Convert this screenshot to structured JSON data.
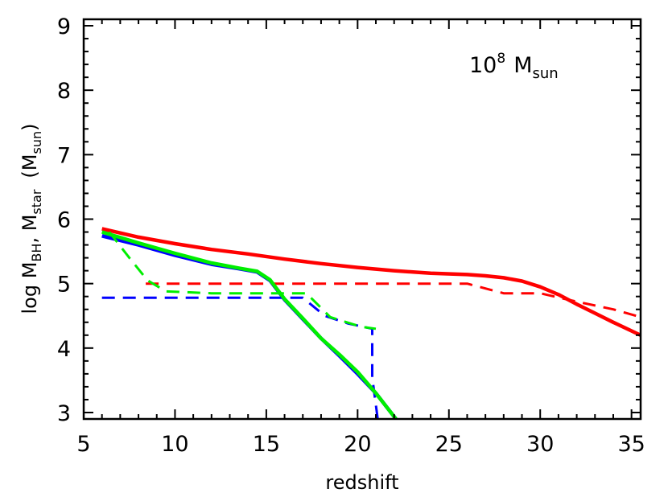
{
  "chart_data": {
    "type": "line",
    "title": "",
    "annotation": {
      "base": "10",
      "exp": "8",
      "label": "M",
      "label_sub": "sun"
    },
    "xlabel": "redshift",
    "ylabel": {
      "a": "log M",
      "a_sub": "BH",
      "b": ", M",
      "b_sub": "star",
      "c": "(M",
      "c_sub": "sun",
      "d": ")"
    },
    "xlim": [
      5,
      35.5
    ],
    "ylim": [
      2.9,
      9.1
    ],
    "xticks": [
      5,
      10,
      15,
      20,
      25,
      30,
      35
    ],
    "yticks": [
      3,
      4,
      5,
      6,
      7,
      8,
      9
    ],
    "grid": false,
    "legend": "none",
    "series": [
      {
        "color": "#ff0000",
        "dash": false,
        "x": [
          6,
          8,
          10,
          12,
          14,
          16,
          18,
          20,
          22,
          24,
          26,
          27,
          28,
          29,
          30,
          31,
          32,
          33,
          34,
          35.5
        ],
        "y": [
          5.85,
          5.72,
          5.62,
          5.53,
          5.46,
          5.38,
          5.31,
          5.25,
          5.2,
          5.16,
          5.14,
          5.12,
          5.09,
          5.04,
          4.95,
          4.83,
          4.68,
          4.54,
          4.4,
          4.2
        ]
      },
      {
        "color": "#ff0000",
        "dash": true,
        "x": [
          8.4,
          26,
          28,
          30,
          32,
          34,
          35.5
        ],
        "y": [
          5.0,
          5.0,
          4.85,
          4.85,
          4.72,
          4.6,
          4.48
        ]
      },
      {
        "color": "#0000ff",
        "dash": false,
        "x": [
          6,
          8,
          10,
          12,
          13.5,
          14.5,
          15.2,
          16,
          17,
          18,
          19,
          20,
          21,
          22.1
        ],
        "y": [
          5.74,
          5.6,
          5.44,
          5.3,
          5.23,
          5.18,
          5.05,
          4.75,
          4.45,
          4.15,
          3.88,
          3.6,
          3.3,
          2.9
        ]
      },
      {
        "color": "#0000ff",
        "dash": true,
        "x": [
          6,
          17,
          18.2,
          19.5,
          20.8,
          20.8,
          21.1
        ],
        "y": [
          4.78,
          4.78,
          4.5,
          4.38,
          4.3,
          3.55,
          2.9
        ]
      },
      {
        "color": "#00ee00",
        "dash": false,
        "x": [
          6,
          8,
          10,
          12,
          13.5,
          14.5,
          15.2,
          16,
          17,
          18,
          19,
          20,
          21,
          22.1
        ],
        "y": [
          5.8,
          5.63,
          5.47,
          5.32,
          5.24,
          5.19,
          5.06,
          4.76,
          4.46,
          4.15,
          3.9,
          3.63,
          3.3,
          2.9
        ]
      },
      {
        "color": "#00ee00",
        "dash": true,
        "x": [
          6.4,
          7.5,
          8.5,
          9.5,
          12,
          15,
          17.2,
          18.5,
          20.2,
          21
        ],
        "y": [
          5.8,
          5.4,
          5.05,
          4.88,
          4.85,
          4.85,
          4.85,
          4.48,
          4.33,
          4.3
        ]
      }
    ]
  }
}
